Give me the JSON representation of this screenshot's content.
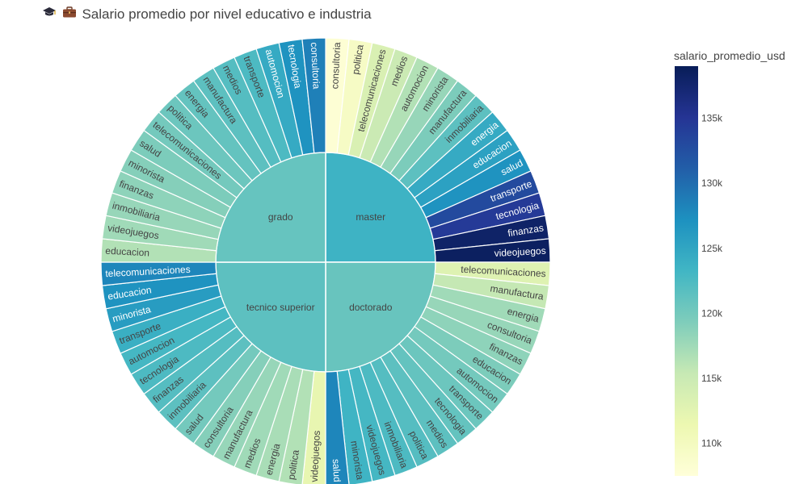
{
  "title": {
    "icons": [
      "graduation-cap-icon",
      "briefcase-icon"
    ],
    "text": "Salario promedio por nivel educativo e industria"
  },
  "colorbar": {
    "title": "salario_promedio_usd",
    "ticks": [
      {
        "value": 110000,
        "label": "110k"
      },
      {
        "value": 115000,
        "label": "115k"
      },
      {
        "value": 120000,
        "label": "120k"
      },
      {
        "value": 125000,
        "label": "125k"
      },
      {
        "value": 130000,
        "label": "130k"
      },
      {
        "value": 135000,
        "label": "135k"
      }
    ],
    "range": [
      107500,
      139000
    ],
    "colorscale": [
      "#ffffd9",
      "#edf8b1",
      "#c7e9b4",
      "#7fcdbb",
      "#41b6c4",
      "#1d91c0",
      "#225ea8",
      "#253494",
      "#081d58"
    ]
  },
  "chart_data": {
    "type": "sunburst",
    "title": "Salario promedio por nivel educativo e industria",
    "color_metric": "salario_promedio_usd",
    "levels": [
      {
        "name": "master",
        "value": 123600,
        "children": [
          {
            "name": "consultoria",
            "value": 108000
          },
          {
            "name": "politica",
            "value": 109500
          },
          {
            "name": "telecomunicaciones",
            "value": 113500
          },
          {
            "name": "medios",
            "value": 115000
          },
          {
            "name": "automocion",
            "value": 116500
          },
          {
            "name": "minorista",
            "value": 118000
          },
          {
            "name": "manufactura",
            "value": 119500
          },
          {
            "name": "inmobiliaria",
            "value": 121500
          },
          {
            "name": "energia",
            "value": 124500
          },
          {
            "name": "educacion",
            "value": 125500
          },
          {
            "name": "salud",
            "value": 127000
          },
          {
            "name": "transporte",
            "value": 133000
          },
          {
            "name": "tecnologia",
            "value": 134500
          },
          {
            "name": "finanzas",
            "value": 138000
          },
          {
            "name": "videojuegos",
            "value": 138500
          }
        ]
      },
      {
        "name": "doctorado",
        "value": 120800,
        "children": [
          {
            "name": "telecomunicaciones",
            "value": 113000
          },
          {
            "name": "manufactura",
            "value": 115500
          },
          {
            "name": "energia",
            "value": 117500
          },
          {
            "name": "consultoria",
            "value": 118000
          },
          {
            "name": "finanzas",
            "value": 118500
          },
          {
            "name": "educacion",
            "value": 119500
          },
          {
            "name": "automocion",
            "value": 120000
          },
          {
            "name": "transporte",
            "value": 120500
          },
          {
            "name": "tecnologia",
            "value": 121000
          },
          {
            "name": "medios",
            "value": 121500
          },
          {
            "name": "politica",
            "value": 122000
          },
          {
            "name": "inmobiliaria",
            "value": 122500
          },
          {
            "name": "videojuegos",
            "value": 123000
          },
          {
            "name": "minorista",
            "value": 123500
          },
          {
            "name": "salud",
            "value": 128000
          }
        ]
      },
      {
        "name": "tecnico superior",
        "value": 121500,
        "children": [
          {
            "name": "videojuegos",
            "value": 112000
          },
          {
            "name": "politica",
            "value": 116500
          },
          {
            "name": "energia",
            "value": 117000
          },
          {
            "name": "medios",
            "value": 117500
          },
          {
            "name": "manufactura",
            "value": 118000
          },
          {
            "name": "consultoria",
            "value": 119000
          },
          {
            "name": "salud",
            "value": 120000
          },
          {
            "name": "inmobiliaria",
            "value": 121500
          },
          {
            "name": "finanzas",
            "value": 122000
          },
          {
            "name": "tecnologia",
            "value": 122500
          },
          {
            "name": "automocion",
            "value": 123000
          },
          {
            "name": "transporte",
            "value": 124000
          },
          {
            "name": "minorista",
            "value": 126000
          },
          {
            "name": "educacion",
            "value": 127000
          },
          {
            "name": "telecomunicaciones",
            "value": 128000
          }
        ]
      },
      {
        "name": "grado",
        "value": 120900,
        "children": [
          {
            "name": "educacion",
            "value": 116500
          },
          {
            "name": "videojuegos",
            "value": 117500
          },
          {
            "name": "inmobiliaria",
            "value": 118000
          },
          {
            "name": "finanzas",
            "value": 118500
          },
          {
            "name": "minorista",
            "value": 119000
          },
          {
            "name": "salud",
            "value": 119500
          },
          {
            "name": "telecomunicaciones",
            "value": 120000
          },
          {
            "name": "politica",
            "value": 120500
          },
          {
            "name": "energia",
            "value": 121000
          },
          {
            "name": "manufactura",
            "value": 121500
          },
          {
            "name": "medios",
            "value": 122000
          },
          {
            "name": "transporte",
            "value": 122500
          },
          {
            "name": "automocion",
            "value": 124500
          },
          {
            "name": "tecnologia",
            "value": 127000
          },
          {
            "name": "consultoria",
            "value": 128500
          }
        ]
      }
    ]
  }
}
